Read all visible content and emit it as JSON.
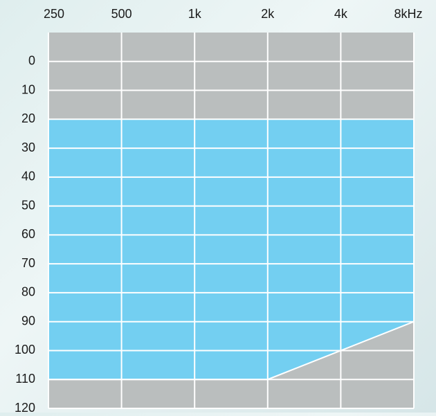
{
  "chart_data": {
    "type": "range-area",
    "categories": [
      "250",
      "500",
      "1k",
      "2k",
      "4k",
      "8kHz"
    ],
    "ylim": [
      -10,
      120
    ],
    "y_inverted": true,
    "yticks": [
      0,
      10,
      20,
      30,
      40,
      50,
      60,
      70,
      80,
      90,
      100,
      110,
      120
    ],
    "grid": true,
    "background_color": "#babebe",
    "range": {
      "color": "#73cff1",
      "low": [
        20,
        20,
        20,
        20,
        20,
        20
      ],
      "high": [
        110,
        110,
        110,
        110,
        100,
        90
      ]
    }
  }
}
